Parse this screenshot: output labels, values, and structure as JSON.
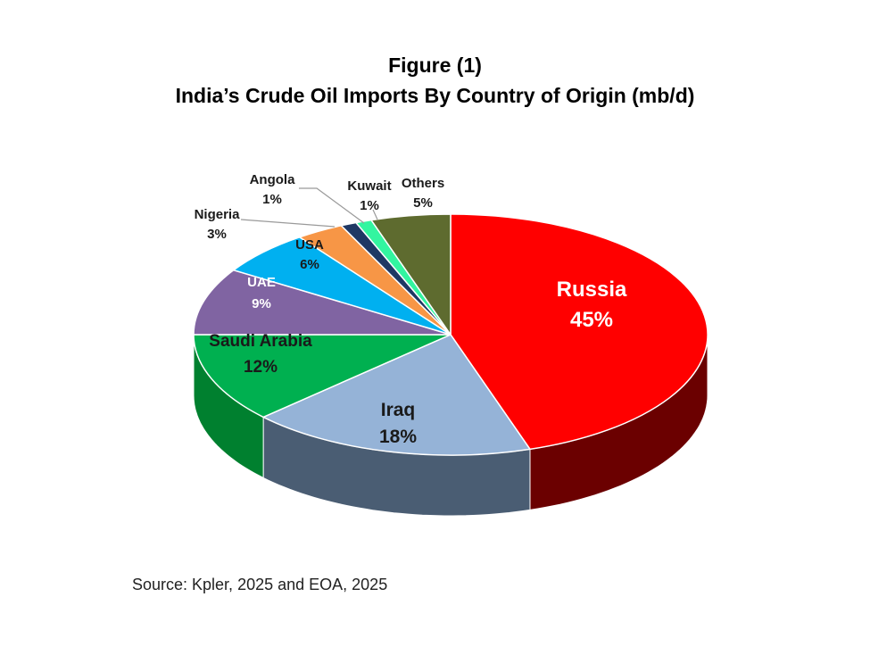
{
  "chart_data": {
    "type": "pie",
    "title": "Figure (1)",
    "subtitle": "India’s Crude Oil Imports By Country of Origin (mb/d)",
    "slices": [
      {
        "label": "Russia",
        "value": 45,
        "value_label": "45%",
        "color": "#ff0000",
        "side_color": "#6b0000"
      },
      {
        "label": "Iraq",
        "value": 18,
        "value_label": "18%",
        "color": "#95b3d7",
        "side_color": "#4a5d73"
      },
      {
        "label": "Saudi Arabia",
        "value": 12,
        "value_label": "12%",
        "color": "#00b050",
        "side_color": "#00802f"
      },
      {
        "label": "UAE",
        "value": 9,
        "value_label": "9%",
        "color": "#8064a2",
        "side_color": "#4b3a61"
      },
      {
        "label": "USA",
        "value": 6,
        "value_label": "6%",
        "color": "#00b0f0",
        "side_color": "#0070a0"
      },
      {
        "label": "Nigeria",
        "value": 3,
        "value_label": "3%",
        "color": "#f79646",
        "side_color": "#b0621c"
      },
      {
        "label": "Angola",
        "value": 1,
        "value_label": "1%",
        "color": "#1f3864",
        "side_color": "#10203a"
      },
      {
        "label": "Kuwait",
        "value": 1,
        "value_label": "1%",
        "color": "#33f5a0",
        "side_color": "#1a9a60"
      },
      {
        "label": "Others",
        "value": 5,
        "value_label": "5%",
        "color": "#5e6b2f",
        "side_color": "#363e19"
      }
    ]
  },
  "source": "Source: Kpler, 2025 and EOA, 2025"
}
